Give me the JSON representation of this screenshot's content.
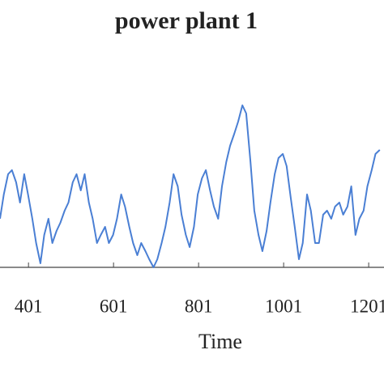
{
  "chart_data": {
    "type": "line",
    "title": "power plant 1",
    "x_label": "Time",
    "x": [
      334,
      343,
      353,
      362,
      372,
      381,
      391,
      400,
      410,
      419,
      429,
      438,
      448,
      457,
      467,
      476,
      486,
      495,
      505,
      514,
      524,
      533,
      543,
      552,
      562,
      571,
      581,
      590,
      600,
      609,
      619,
      628,
      638,
      647,
      657,
      666,
      676,
      685,
      695,
      704,
      714,
      723,
      733,
      742,
      752,
      761,
      771,
      780,
      790,
      799,
      809,
      818,
      828,
      837,
      847,
      856,
      866,
      875,
      885,
      894,
      904,
      913,
      923,
      932,
      942,
      951,
      961,
      970,
      980,
      989,
      999,
      1008,
      1018,
      1027,
      1037,
      1046,
      1056,
      1065,
      1075,
      1084,
      1094,
      1103,
      1113,
      1122,
      1132,
      1141,
      1151,
      1160,
      1170,
      1179,
      1189,
      1198,
      1208,
      1217,
      1227
    ],
    "series": [
      {
        "color": "#4a7fd4",
        "values": [
          60,
          90,
          115,
          120,
          105,
          80,
          115,
          90,
          60,
          30,
          5,
          40,
          60,
          30,
          45,
          55,
          70,
          80,
          105,
          115,
          95,
          115,
          80,
          60,
          30,
          40,
          50,
          30,
          40,
          60,
          90,
          75,
          50,
          30,
          15,
          30,
          20,
          10,
          0,
          10,
          30,
          50,
          80,
          115,
          100,
          65,
          40,
          25,
          50,
          90,
          110,
          120,
          95,
          75,
          60,
          100,
          130,
          150,
          165,
          180,
          200,
          190,
          130,
          70,
          40,
          20,
          45,
          80,
          115,
          135,
          140,
          125,
          85,
          50,
          10,
          30,
          90,
          70,
          30,
          30,
          65,
          70,
          60,
          75,
          80,
          65,
          75,
          100,
          40,
          60,
          70,
          100,
          120,
          140,
          145
        ]
      }
    ],
    "xlim": [
      334,
      1237
    ],
    "ylim": [
      0,
      257
    ],
    "xticks": [
      401,
      601,
      801,
      1001,
      1201
    ]
  }
}
